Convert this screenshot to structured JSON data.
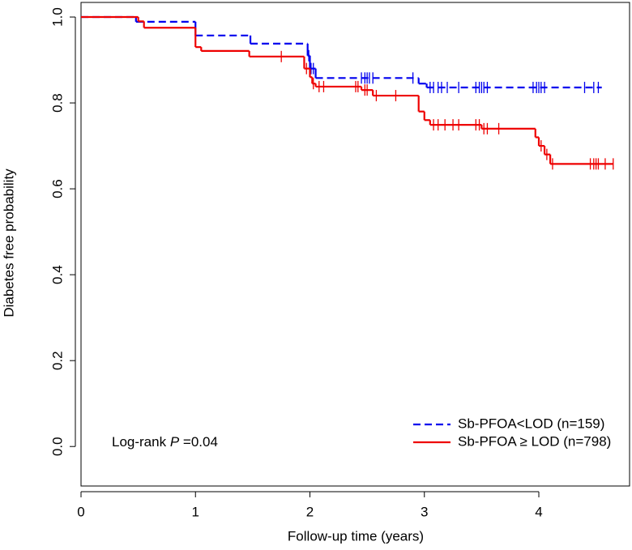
{
  "chart_data": {
    "type": "km",
    "x_label": "Follow-up time (years)",
    "y_label": "Diabetes free probability",
    "annotation": {
      "text": "Log-rank ",
      "italic": "P",
      "suffix": " =0.04"
    },
    "xlim": [
      0,
      4.8
    ],
    "ylim": [
      -0.092,
      1.034
    ],
    "xticks": [
      0,
      1,
      2,
      3,
      4
    ],
    "yticks": [
      {
        "value": 0,
        "label": "0.0"
      },
      0.2,
      0.4,
      0.6,
      0.8,
      {
        "value": 1,
        "label": "1.0"
      }
    ],
    "legend": "bottom-right",
    "series": [
      {
        "name": "Sb-PFOA<LOD (n=159)",
        "color": "#0000ee",
        "dashed": true,
        "x": [
          0,
          0.48,
          1.0,
          1.48,
          1.98,
          2.0,
          2.05,
          2.95,
          3.02,
          4.55
        ],
        "values": [
          1.0,
          0.989,
          0.957,
          0.938,
          0.91,
          0.88,
          0.858,
          0.845,
          0.836,
          0.836
        ],
        "censor_x": [
          1.99,
          2.01,
          2.03,
          2.45,
          2.48,
          2.5,
          2.52,
          2.55,
          2.9,
          3.05,
          3.08,
          3.12,
          3.15,
          3.2,
          3.3,
          3.45,
          3.48,
          3.5,
          3.52,
          3.55,
          3.95,
          3.98,
          4.0,
          4.02,
          4.05,
          4.4,
          4.48,
          4.52
        ],
        "censor_values": [
          0.91,
          0.88,
          0.88,
          0.858,
          0.858,
          0.858,
          0.858,
          0.858,
          0.858,
          0.836,
          0.836,
          0.836,
          0.836,
          0.836,
          0.836,
          0.836,
          0.836,
          0.836,
          0.836,
          0.836,
          0.836,
          0.836,
          0.836,
          0.836,
          0.836,
          0.836,
          0.836,
          0.836
        ]
      },
      {
        "name": "Sb-PFOA ≥ LOD (n=798)",
        "color": "#ee0000",
        "dashed": false,
        "x": [
          0,
          0.5,
          0.55,
          1.0,
          1.05,
          1.47,
          1.95,
          2.0,
          2.02,
          2.05,
          2.45,
          2.55,
          2.95,
          3.0,
          3.05,
          3.5,
          3.97,
          4.0,
          4.05,
          4.1,
          4.65
        ],
        "values": [
          1.0,
          0.99,
          0.975,
          0.93,
          0.921,
          0.908,
          0.88,
          0.86,
          0.845,
          0.838,
          0.83,
          0.817,
          0.78,
          0.76,
          0.749,
          0.74,
          0.72,
          0.7,
          0.68,
          0.658,
          0.658
        ],
        "censor_x": [
          1.75,
          1.97,
          2.03,
          2.08,
          2.12,
          2.4,
          2.42,
          2.48,
          2.5,
          2.58,
          2.75,
          3.08,
          3.12,
          3.18,
          3.25,
          3.3,
          3.45,
          3.48,
          3.52,
          3.55,
          3.65,
          4.02,
          4.07,
          4.12,
          4.45,
          4.48,
          4.5,
          4.52,
          4.58,
          4.65
        ],
        "censor_values": [
          0.908,
          0.88,
          0.845,
          0.838,
          0.838,
          0.838,
          0.838,
          0.83,
          0.83,
          0.817,
          0.817,
          0.749,
          0.749,
          0.749,
          0.749,
          0.749,
          0.749,
          0.749,
          0.74,
          0.74,
          0.74,
          0.7,
          0.68,
          0.658,
          0.658,
          0.658,
          0.658,
          0.658,
          0.658,
          0.658
        ]
      }
    ]
  }
}
